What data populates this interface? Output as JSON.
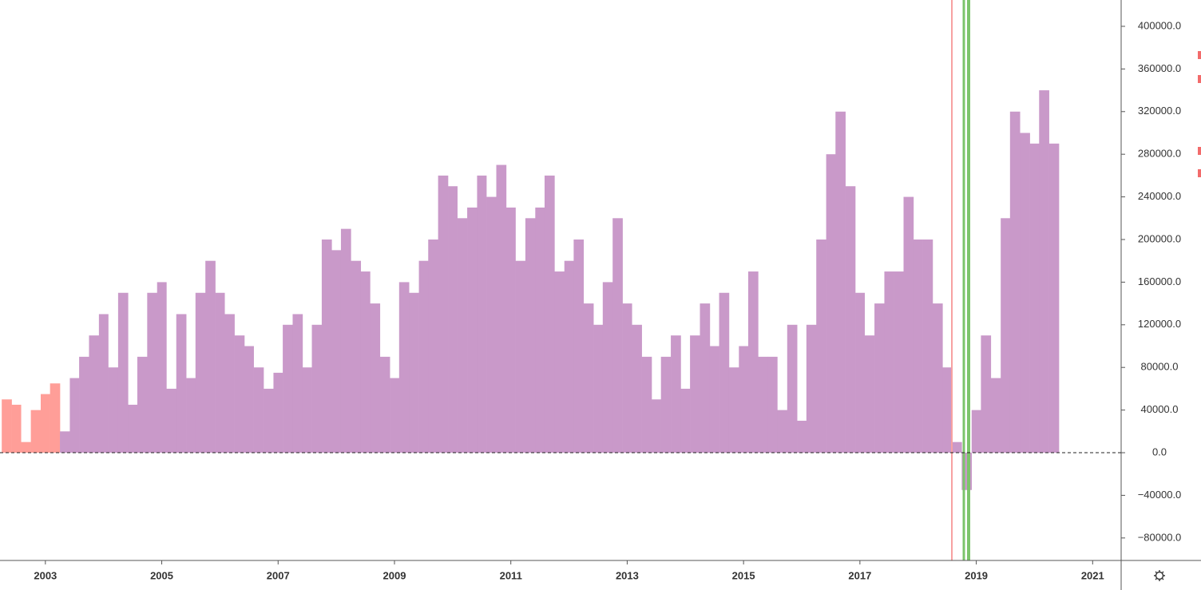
{
  "chart_data": {
    "type": "bar",
    "x": [
      2002.25,
      2002.42,
      2002.58,
      2002.75,
      2002.92,
      2003.08,
      2003.25,
      2003.42,
      2003.58,
      2003.75,
      2003.92,
      2004.08,
      2004.25,
      2004.42,
      2004.58,
      2004.75,
      2004.92,
      2005.08,
      2005.25,
      2005.42,
      2005.58,
      2005.75,
      2005.92,
      2006.08,
      2006.25,
      2006.42,
      2006.58,
      2006.75,
      2006.92,
      2007.08,
      2007.25,
      2007.42,
      2007.58,
      2007.75,
      2007.92,
      2008.08,
      2008.25,
      2008.42,
      2008.58,
      2008.75,
      2008.92,
      2009.08,
      2009.25,
      2009.42,
      2009.58,
      2009.75,
      2009.92,
      2010.08,
      2010.25,
      2010.42,
      2010.58,
      2010.75,
      2010.92,
      2011.08,
      2011.25,
      2011.42,
      2011.58,
      2011.75,
      2011.92,
      2012.08,
      2012.25,
      2012.42,
      2012.58,
      2012.75,
      2012.92,
      2013.08,
      2013.25,
      2013.42,
      2013.58,
      2013.75,
      2013.92,
      2014.08,
      2014.25,
      2014.42,
      2014.58,
      2014.75,
      2014.92,
      2015.08,
      2015.25,
      2015.42,
      2015.58,
      2015.75,
      2015.92,
      2016.08,
      2016.25,
      2016.42,
      2016.58,
      2016.75,
      2016.92,
      2017.08,
      2017.25,
      2017.42,
      2017.58,
      2017.75,
      2017.92,
      2018.08,
      2018.25,
      2018.42,
      2018.58,
      2018.75,
      2018.92,
      2019.08,
      2019.25,
      2019.42,
      2019.58,
      2019.75,
      2019.92,
      2020.08,
      2020.25
    ],
    "values": [
      50000,
      45000,
      10000,
      40000,
      55000,
      65000,
      20000,
      70000,
      90000,
      110000,
      130000,
      80000,
      150000,
      45000,
      90000,
      150000,
      160000,
      60000,
      130000,
      70000,
      150000,
      180000,
      150000,
      130000,
      110000,
      100000,
      80000,
      60000,
      75000,
      120000,
      130000,
      80000,
      120000,
      200000,
      190000,
      210000,
      180000,
      170000,
      140000,
      90000,
      70000,
      160000,
      150000,
      180000,
      200000,
      260000,
      250000,
      220000,
      230000,
      260000,
      240000,
      270000,
      230000,
      180000,
      220000,
      230000,
      260000,
      170000,
      180000,
      200000,
      140000,
      120000,
      160000,
      220000,
      140000,
      120000,
      90000,
      50000,
      90000,
      110000,
      60000,
      110000,
      140000,
      100000,
      150000,
      80000,
      100000,
      170000,
      90000,
      90000,
      40000,
      120000,
      30000,
      120000,
      200000,
      280000,
      320000,
      250000,
      150000,
      110000,
      140000,
      170000,
      170000,
      240000,
      200000,
      200000,
      140000,
      80000,
      10000,
      -35000,
      40000,
      110000,
      70000,
      220000,
      320000,
      300000,
      290000,
      340000,
      290000
    ],
    "colors": [
      "#ff9e98",
      "#ff9e98",
      "#ff9e98",
      "#ff9e98",
      "#ff9e98",
      "#ff9e98",
      "#c999c9",
      "#c999c9",
      "#c999c9",
      "#c999c9",
      "#c999c9",
      "#c999c9",
      "#c999c9",
      "#c999c9",
      "#c999c9",
      "#c999c9",
      "#c999c9",
      "#c999c9",
      "#c999c9",
      "#c999c9",
      "#c999c9",
      "#c999c9",
      "#c999c9",
      "#c999c9",
      "#c999c9",
      "#c999c9",
      "#c999c9",
      "#c999c9",
      "#c999c9",
      "#c999c9",
      "#c999c9",
      "#c999c9",
      "#c999c9",
      "#c999c9",
      "#c999c9",
      "#c999c9",
      "#c999c9",
      "#c999c9",
      "#c999c9",
      "#c999c9",
      "#c999c9",
      "#c999c9",
      "#c999c9",
      "#c999c9",
      "#c999c9",
      "#c999c9",
      "#c999c9",
      "#c999c9",
      "#c999c9",
      "#c999c9",
      "#c999c9",
      "#c999c9",
      "#c999c9",
      "#c999c9",
      "#c999c9",
      "#c999c9",
      "#c999c9",
      "#c999c9",
      "#c999c9",
      "#c999c9",
      "#c999c9",
      "#c999c9",
      "#c999c9",
      "#c999c9",
      "#c999c9",
      "#c999c9",
      "#c999c9",
      "#c999c9",
      "#c999c9",
      "#c999c9",
      "#c999c9",
      "#c999c9",
      "#c999c9",
      "#c999c9",
      "#c999c9",
      "#c999c9",
      "#c999c9",
      "#c999c9",
      "#c999c9",
      "#c999c9",
      "#c999c9",
      "#c999c9",
      "#c999c9",
      "#c999c9",
      "#c999c9",
      "#c999c9",
      "#c999c9",
      "#c999c9",
      "#c999c9",
      "#c999c9",
      "#c999c9",
      "#c999c9",
      "#c999c9",
      "#c999c9",
      "#c999c9",
      "#c999c9",
      "#c999c9",
      "#c999c9",
      "#c999c9",
      "#c999c9",
      "#c999c9",
      "#c999c9",
      "#c999c9",
      "#c999c9",
      "#c999c9",
      "#c999c9",
      "#c999c9",
      "#c999c9",
      "#c999c9"
    ],
    "xlim": [
      2002.22,
      2021.49
    ],
    "xticks": [
      2003,
      2005,
      2007,
      2009,
      2011,
      2013,
      2015,
      2017,
      2019,
      2021
    ],
    "ylim": [
      -101100,
      424700
    ],
    "yticks": [
      {
        "value": -80000,
        "label": "−80000.0"
      },
      {
        "value": -40000,
        "label": "−40000.0"
      },
      {
        "value": 0,
        "label": "0.0"
      },
      {
        "value": 40000,
        "label": "40000.0"
      },
      {
        "value": 80000,
        "label": "80000.0"
      },
      {
        "value": 120000,
        "label": "120000.0"
      },
      {
        "value": 160000,
        "label": "160000.0"
      },
      {
        "value": 200000,
        "label": "200000.0"
      },
      {
        "value": 240000,
        "label": "240000.0"
      },
      {
        "value": 280000,
        "label": "280000.0"
      },
      {
        "value": 320000,
        "label": "320000.0"
      },
      {
        "value": 360000,
        "label": "360000.0"
      },
      {
        "value": 400000,
        "label": "400000.0"
      }
    ]
  }
}
